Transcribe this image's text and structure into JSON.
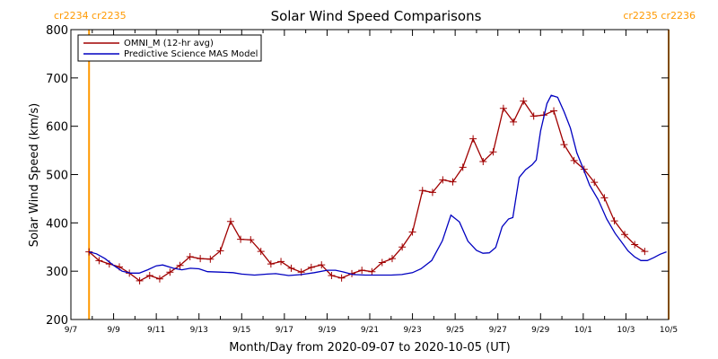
{
  "chart_data": {
    "type": "line",
    "title": "Solar Wind Speed Comparisons",
    "xlabel": "Month/Day from 2020-09-07 to 2020-10-05 (UT)",
    "ylabel": "Solar Wind Speed (km/s)",
    "xlim": [
      0,
      28
    ],
    "ylim": [
      200,
      800
    ],
    "yticks": [
      200,
      300,
      400,
      500,
      600,
      700,
      800
    ],
    "xticks": [
      {
        "x": 0,
        "label": "9/7"
      },
      {
        "x": 2,
        "label": "9/9"
      },
      {
        "x": 4,
        "label": "9/11"
      },
      {
        "x": 6,
        "label": "9/13"
      },
      {
        "x": 8,
        "label": "9/15"
      },
      {
        "x": 10,
        "label": "9/17"
      },
      {
        "x": 12,
        "label": "9/19"
      },
      {
        "x": 14,
        "label": "9/21"
      },
      {
        "x": 16,
        "label": "9/23"
      },
      {
        "x": 18,
        "label": "9/25"
      },
      {
        "x": 20,
        "label": "9/27"
      },
      {
        "x": 22,
        "label": "9/29"
      },
      {
        "x": 24,
        "label": "10/1"
      },
      {
        "x": 26,
        "label": "10/3"
      },
      {
        "x": 28,
        "label": "10/5"
      }
    ],
    "rotation_markers": [
      {
        "x": 0.85,
        "label": "cr2234 cr2235",
        "color": "#ff9900",
        "label_side": "left"
      },
      {
        "x": 28.0,
        "label": "cr2235 cr2236",
        "color": "#ff9900",
        "label_side": "right"
      }
    ],
    "legend": {
      "position": "top-left"
    },
    "series": [
      {
        "name": "OMNI_M (12-hr avg)",
        "color": "#a00000",
        "marker": "plus",
        "points": [
          [
            0.85,
            340
          ],
          [
            1.32,
            322
          ],
          [
            1.8,
            315
          ],
          [
            2.27,
            309
          ],
          [
            2.74,
            296
          ],
          [
            3.22,
            280
          ],
          [
            3.69,
            291
          ],
          [
            4.16,
            284
          ],
          [
            4.64,
            298
          ],
          [
            5.11,
            312
          ],
          [
            5.58,
            330
          ],
          [
            6.06,
            326
          ],
          [
            6.53,
            325
          ],
          [
            7.0,
            342
          ],
          [
            7.48,
            403
          ],
          [
            7.95,
            366
          ],
          [
            8.42,
            365
          ],
          [
            8.9,
            341
          ],
          [
            9.37,
            315
          ],
          [
            9.84,
            320
          ],
          [
            10.32,
            306
          ],
          [
            10.79,
            298
          ],
          [
            11.26,
            308
          ],
          [
            11.74,
            313
          ],
          [
            12.21,
            291
          ],
          [
            12.68,
            286
          ],
          [
            13.16,
            295
          ],
          [
            13.63,
            302
          ],
          [
            14.1,
            299
          ],
          [
            14.58,
            318
          ],
          [
            15.05,
            326
          ],
          [
            15.52,
            350
          ],
          [
            16.0,
            381
          ],
          [
            16.47,
            467
          ],
          [
            16.94,
            463
          ],
          [
            17.42,
            489
          ],
          [
            17.89,
            485
          ],
          [
            18.36,
            515
          ],
          [
            18.84,
            574
          ],
          [
            19.31,
            527
          ],
          [
            19.78,
            547
          ],
          [
            20.26,
            637
          ],
          [
            20.73,
            609
          ],
          [
            21.2,
            652
          ],
          [
            21.68,
            621
          ],
          [
            22.15,
            623
          ],
          [
            22.62,
            632
          ],
          [
            23.1,
            562
          ],
          [
            23.57,
            529
          ],
          [
            24.04,
            511
          ],
          [
            24.52,
            484
          ],
          [
            24.99,
            452
          ],
          [
            25.46,
            404
          ],
          [
            25.94,
            376
          ],
          [
            26.41,
            355
          ],
          [
            26.88,
            341
          ]
        ]
      },
      {
        "name": "Predictive Science MAS Model",
        "color": "#0000c0",
        "marker": "none",
        "points": [
          [
            0.85,
            340
          ],
          [
            1.2,
            336
          ],
          [
            1.6,
            326
          ],
          [
            2.0,
            312
          ],
          [
            2.4,
            300
          ],
          [
            2.8,
            296
          ],
          [
            3.2,
            296
          ],
          [
            3.6,
            303
          ],
          [
            4.0,
            311
          ],
          [
            4.3,
            313
          ],
          [
            4.8,
            306
          ],
          [
            5.2,
            303
          ],
          [
            5.6,
            306
          ],
          [
            6.0,
            305
          ],
          [
            6.4,
            299
          ],
          [
            7.0,
            298
          ],
          [
            7.6,
            297
          ],
          [
            8.0,
            294
          ],
          [
            8.6,
            292
          ],
          [
            9.2,
            294
          ],
          [
            9.6,
            295
          ],
          [
            10.2,
            291
          ],
          [
            10.8,
            293
          ],
          [
            11.4,
            297
          ],
          [
            12.0,
            302
          ],
          [
            12.4,
            302
          ],
          [
            12.8,
            298
          ],
          [
            13.2,
            293
          ],
          [
            13.8,
            292
          ],
          [
            14.4,
            292
          ],
          [
            15.0,
            292
          ],
          [
            15.5,
            293
          ],
          [
            16.0,
            297
          ],
          [
            16.4,
            305
          ],
          [
            16.9,
            322
          ],
          [
            17.4,
            363
          ],
          [
            17.8,
            416
          ],
          [
            18.2,
            402
          ],
          [
            18.6,
            362
          ],
          [
            19.0,
            343
          ],
          [
            19.3,
            337
          ],
          [
            19.6,
            338
          ],
          [
            19.9,
            349
          ],
          [
            20.2,
            392
          ],
          [
            20.5,
            408
          ],
          [
            20.7,
            411
          ],
          [
            21.0,
            494
          ],
          [
            21.3,
            510
          ],
          [
            21.6,
            520
          ],
          [
            21.8,
            530
          ],
          [
            22.0,
            590
          ],
          [
            22.3,
            647
          ],
          [
            22.5,
            664
          ],
          [
            22.8,
            660
          ],
          [
            23.1,
            630
          ],
          [
            23.4,
            596
          ],
          [
            23.7,
            545
          ],
          [
            24.0,
            512
          ],
          [
            24.3,
            478
          ],
          [
            24.7,
            448
          ],
          [
            25.1,
            408
          ],
          [
            25.5,
            378
          ],
          [
            25.8,
            360
          ],
          [
            26.1,
            342
          ],
          [
            26.4,
            330
          ],
          [
            26.7,
            322
          ],
          [
            27.0,
            322
          ],
          [
            27.3,
            328
          ],
          [
            27.6,
            335
          ],
          [
            27.9,
            340
          ]
        ]
      }
    ]
  }
}
